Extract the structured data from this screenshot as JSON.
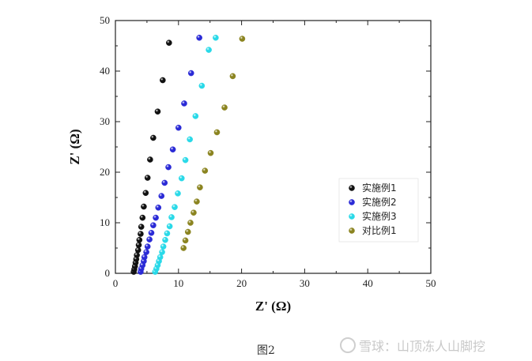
{
  "caption": "图2",
  "watermark": "雪球：山顶冻人山脚挖",
  "chart_data": {
    "type": "scatter",
    "xlabel": "Z' (Ω)",
    "ylabel": "Z' (Ω)",
    "xlim": [
      0,
      50
    ],
    "ylim": [
      0,
      50
    ],
    "xticks": [
      "0",
      "10",
      "20",
      "30",
      "40",
      "50"
    ],
    "yticks": [
      "0",
      "10",
      "20",
      "30",
      "40",
      "50"
    ],
    "grid": false,
    "legend_position": "right",
    "series": [
      {
        "name": "实施例1",
        "color": "#111111",
        "points": [
          [
            2.9,
            0.3
          ],
          [
            3.0,
            0.8
          ],
          [
            3.1,
            1.4
          ],
          [
            3.2,
            2.1
          ],
          [
            3.3,
            2.8
          ],
          [
            3.4,
            3.6
          ],
          [
            3.6,
            4.6
          ],
          [
            3.7,
            5.6
          ],
          [
            3.8,
            6.6
          ],
          [
            4.0,
            7.8
          ],
          [
            4.1,
            9.2
          ],
          [
            4.3,
            11.0
          ],
          [
            4.5,
            13.2
          ],
          [
            4.8,
            15.9
          ],
          [
            5.1,
            18.9
          ],
          [
            5.5,
            22.5
          ],
          [
            6.0,
            26.8
          ],
          [
            6.7,
            32.0
          ],
          [
            7.5,
            38.2
          ],
          [
            8.5,
            45.6
          ]
        ]
      },
      {
        "name": "实施例2",
        "color": "#2a2ad6",
        "points": [
          [
            4.0,
            0.3
          ],
          [
            4.1,
            0.9
          ],
          [
            4.3,
            1.6
          ],
          [
            4.5,
            2.4
          ],
          [
            4.6,
            3.2
          ],
          [
            4.9,
            4.2
          ],
          [
            5.1,
            5.3
          ],
          [
            5.4,
            6.7
          ],
          [
            5.7,
            8.0
          ],
          [
            6.0,
            9.5
          ],
          [
            6.4,
            11.0
          ],
          [
            6.8,
            13.0
          ],
          [
            7.3,
            15.3
          ],
          [
            7.8,
            17.9
          ],
          [
            8.4,
            21.0
          ],
          [
            9.1,
            24.5
          ],
          [
            10.0,
            28.8
          ],
          [
            10.9,
            33.6
          ],
          [
            12.0,
            39.6
          ],
          [
            13.3,
            46.6
          ]
        ]
      },
      {
        "name": "实施例3",
        "color": "#29d9e8",
        "points": [
          [
            6.3,
            0.3
          ],
          [
            6.5,
            0.9
          ],
          [
            6.7,
            1.6
          ],
          [
            6.9,
            2.4
          ],
          [
            7.1,
            3.2
          ],
          [
            7.4,
            4.2
          ],
          [
            7.6,
            5.3
          ],
          [
            7.9,
            6.6
          ],
          [
            8.2,
            7.9
          ],
          [
            8.6,
            9.3
          ],
          [
            8.9,
            11.1
          ],
          [
            9.4,
            13.1
          ],
          [
            9.9,
            15.8
          ],
          [
            10.5,
            18.8
          ],
          [
            11.1,
            22.4
          ],
          [
            11.8,
            26.5
          ],
          [
            12.7,
            31.1
          ],
          [
            13.7,
            37.1
          ],
          [
            14.8,
            44.2
          ],
          [
            15.9,
            46.6
          ]
        ]
      },
      {
        "name": "对比例1",
        "color": "#8b8420",
        "points": [
          [
            10.8,
            5.0
          ],
          [
            11.1,
            6.5
          ],
          [
            11.5,
            8.2
          ],
          [
            11.9,
            10.0
          ],
          [
            12.4,
            12.0
          ],
          [
            12.9,
            14.2
          ],
          [
            13.4,
            17.0
          ],
          [
            14.2,
            20.3
          ],
          [
            15.1,
            23.8
          ],
          [
            16.1,
            27.9
          ],
          [
            17.3,
            32.8
          ],
          [
            18.6,
            39.0
          ],
          [
            20.1,
            46.4
          ]
        ]
      }
    ]
  }
}
